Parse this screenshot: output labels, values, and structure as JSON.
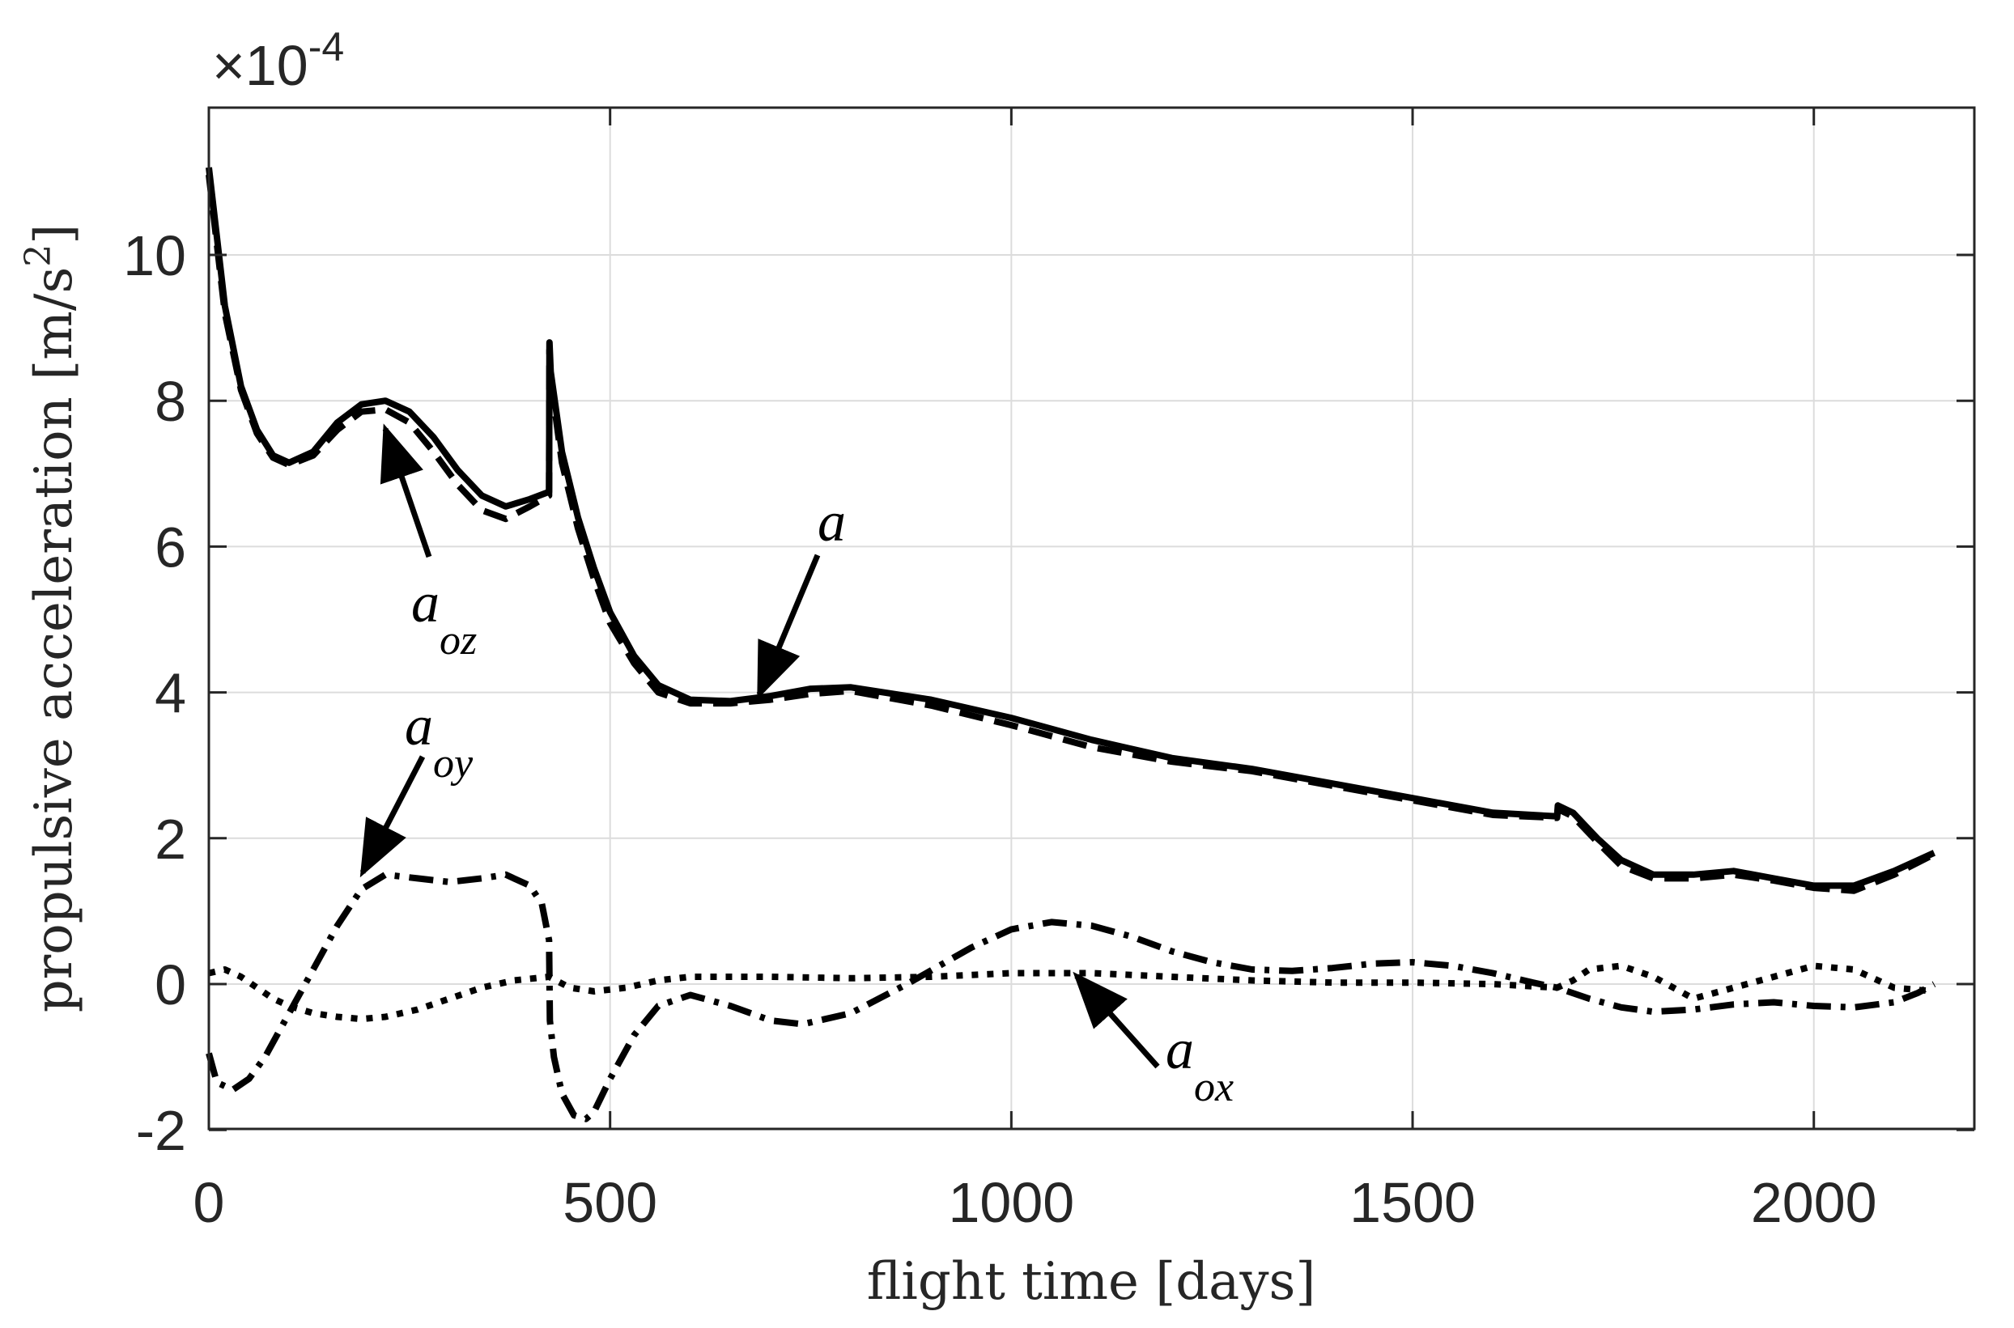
{
  "chart_data": {
    "type": "line",
    "xlabel": "flight time [days]",
    "ylabel": "propulsive acceleration [m/s",
    "ylabel_sup": "2",
    "ylabel_end": "]",
    "exponent_base": "×10",
    "exponent_power": "-4",
    "xlim": [
      0,
      2200
    ],
    "ylim": [
      -2,
      12
    ],
    "grid": true,
    "xticks": [
      0,
      500,
      1000,
      1500,
      2000
    ],
    "xtick_labels": [
      "0",
      "500",
      "1000",
      "1500",
      "2000"
    ],
    "yticks": [
      -2,
      0,
      2,
      4,
      6,
      8,
      10
    ],
    "ytick_labels": [
      "-2",
      "0",
      "2",
      "4",
      "6",
      "8",
      "10"
    ],
    "series": [
      {
        "name": "a",
        "style": "solid",
        "x": [
          0,
          20,
          40,
          60,
          80,
          100,
          130,
          160,
          190,
          220,
          250,
          280,
          310,
          340,
          370,
          400,
          424,
          424.5,
          426,
          440,
          460,
          480,
          500,
          530,
          560,
          600,
          650,
          700,
          750,
          800,
          900,
          1000,
          1100,
          1200,
          1300,
          1400,
          1500,
          1600,
          1680,
          1681,
          1700,
          1730,
          1760,
          1800,
          1850,
          1900,
          1950,
          2000,
          2050,
          2100,
          2150
        ],
        "y": [
          11.2,
          9.3,
          8.2,
          7.6,
          7.25,
          7.15,
          7.3,
          7.7,
          7.95,
          8.0,
          7.85,
          7.5,
          7.05,
          6.7,
          6.55,
          6.65,
          6.75,
          8.8,
          8.4,
          7.3,
          6.4,
          5.7,
          5.1,
          4.5,
          4.1,
          3.9,
          3.88,
          3.95,
          4.05,
          4.07,
          3.9,
          3.65,
          3.35,
          3.1,
          2.95,
          2.75,
          2.55,
          2.35,
          2.3,
          2.45,
          2.35,
          2.0,
          1.7,
          1.5,
          1.5,
          1.55,
          1.45,
          1.35,
          1.35,
          1.55,
          1.8
        ]
      },
      {
        "name": "a_oz",
        "style": "dashed",
        "x": [
          0,
          20,
          40,
          60,
          80,
          100,
          130,
          160,
          190,
          220,
          250,
          280,
          310,
          340,
          370,
          400,
          424,
          424.5,
          426,
          440,
          460,
          480,
          500,
          530,
          560,
          600,
          650,
          700,
          750,
          800,
          900,
          1000,
          1100,
          1200,
          1300,
          1400,
          1500,
          1600,
          1680,
          1681,
          1700,
          1730,
          1760,
          1800,
          1850,
          1900,
          1950,
          2000,
          2050,
          2100,
          2150
        ],
        "y": [
          11.1,
          9.2,
          8.15,
          7.55,
          7.22,
          7.12,
          7.25,
          7.6,
          7.85,
          7.88,
          7.7,
          7.3,
          6.85,
          6.5,
          6.38,
          6.55,
          6.7,
          8.7,
          8.3,
          7.15,
          6.25,
          5.55,
          4.95,
          4.4,
          4.0,
          3.85,
          3.85,
          3.9,
          3.98,
          4.02,
          3.82,
          3.55,
          3.25,
          3.05,
          2.92,
          2.72,
          2.52,
          2.32,
          2.28,
          2.4,
          2.3,
          1.95,
          1.62,
          1.45,
          1.45,
          1.5,
          1.42,
          1.32,
          1.28,
          1.5,
          1.78
        ]
      },
      {
        "name": "a_oy",
        "style": "dash-dot",
        "x": [
          0,
          10,
          30,
          50,
          70,
          100,
          130,
          160,
          190,
          220,
          260,
          300,
          340,
          370,
          400,
          415,
          424,
          425,
          430,
          440,
          455,
          470,
          480,
          500,
          530,
          560,
          600,
          650,
          700,
          740,
          800,
          870,
          950,
          1000,
          1050,
          1100,
          1150,
          1200,
          1250,
          1300,
          1350,
          1400,
          1450,
          1500,
          1550,
          1600,
          1650,
          1680,
          1720,
          1760,
          1800,
          1850,
          1900,
          1950,
          2000,
          2050,
          2100,
          2130,
          2150
        ],
        "y": [
          -0.95,
          -1.35,
          -1.45,
          -1.3,
          -1.0,
          -0.4,
          0.2,
          0.8,
          1.3,
          1.5,
          1.45,
          1.4,
          1.45,
          1.5,
          1.35,
          1.1,
          0.6,
          -0.5,
          -1.0,
          -1.5,
          -1.8,
          -1.85,
          -1.75,
          -1.3,
          -0.7,
          -0.3,
          -0.15,
          -0.3,
          -0.5,
          -0.55,
          -0.4,
          0.0,
          0.5,
          0.75,
          0.85,
          0.8,
          0.65,
          0.45,
          0.3,
          0.2,
          0.18,
          0.22,
          0.28,
          0.3,
          0.25,
          0.15,
          0.02,
          -0.05,
          -0.2,
          -0.32,
          -0.38,
          -0.35,
          -0.28,
          -0.25,
          -0.3,
          -0.32,
          -0.25,
          -0.12,
          0.0
        ]
      },
      {
        "name": "a_ox",
        "style": "dotted",
        "x": [
          0,
          20,
          40,
          60,
          80,
          100,
          130,
          160,
          190,
          220,
          260,
          300,
          340,
          380,
          424,
          450,
          480,
          520,
          560,
          600,
          700,
          800,
          900,
          1000,
          1100,
          1200,
          1300,
          1400,
          1500,
          1600,
          1680,
          1700,
          1720,
          1760,
          1800,
          1850,
          1900,
          1950,
          2000,
          2050,
          2100,
          2150
        ],
        "y": [
          0.15,
          0.2,
          0.1,
          -0.05,
          -0.2,
          -0.3,
          -0.4,
          -0.45,
          -0.48,
          -0.45,
          -0.35,
          -0.2,
          -0.05,
          0.05,
          0.1,
          -0.05,
          -0.1,
          -0.05,
          0.05,
          0.1,
          0.1,
          0.08,
          0.1,
          0.15,
          0.15,
          0.1,
          0.05,
          0.02,
          0.02,
          0.0,
          -0.05,
          0.05,
          0.2,
          0.25,
          0.1,
          -0.2,
          -0.05,
          0.1,
          0.25,
          0.2,
          -0.05,
          -0.1
        ]
      }
    ],
    "annotations": [
      {
        "text": "a",
        "sub": "",
        "tail": [
          1540,
          750
        ],
        "head": [
          1590,
          530
        ]
      },
      {
        "text": "a",
        "sub": "oz",
        "tail": [
          1340,
          430
        ],
        "head": [
          1300,
          320
        ]
      },
      {
        "text": "a",
        "sub": "oy",
        "tail": [
          1330,
          590
        ],
        "head": [
          1280,
          670
        ]
      },
      {
        "text": "a",
        "sub": "ox",
        "tail": [
          1890,
          825
        ],
        "head": [
          1840,
          750
        ]
      }
    ]
  }
}
